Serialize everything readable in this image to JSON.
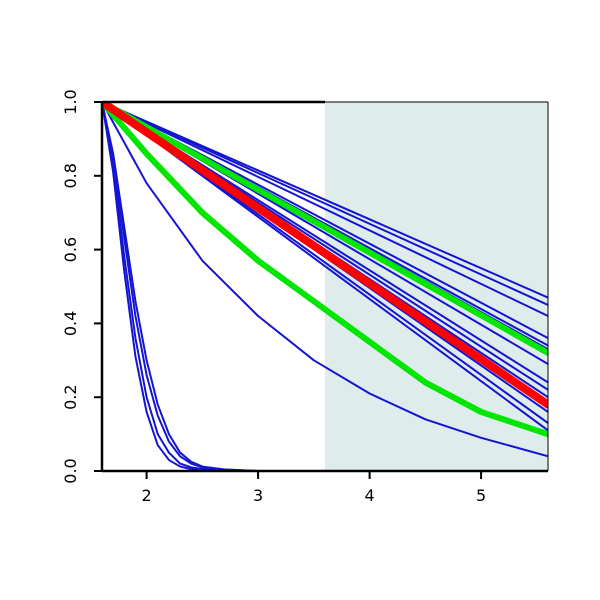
{
  "chart_data": {
    "type": "line",
    "title": "",
    "xlabel": "",
    "ylabel": "",
    "xlim": [
      1.6,
      5.6
    ],
    "ylim": [
      0,
      1
    ],
    "x_ticks": [
      2,
      3,
      4,
      5
    ],
    "y_ticks": [
      0.0,
      0.2,
      0.4,
      0.6,
      0.8,
      1.0
    ],
    "x_tick_labels": [
      "2",
      "3",
      "4",
      "5"
    ],
    "y_tick_labels": [
      "0.0",
      "0.2",
      "0.4",
      "0.6",
      "0.8",
      "1.0"
    ],
    "grid": false,
    "shaded_region": {
      "x_start": 3.6,
      "x_end": 5.6,
      "color": "#deecec"
    },
    "series_colors": {
      "thin": "#1414d2",
      "highlight": "#00e600",
      "focus": "#ff0000"
    },
    "series": [
      {
        "color_role": "thin",
        "width": 2,
        "x": [
          1.6,
          5.6
        ],
        "y": [
          1.0,
          0.47
        ]
      },
      {
        "color_role": "thin",
        "width": 2,
        "x": [
          1.6,
          5.6
        ],
        "y": [
          1.0,
          0.45
        ]
      },
      {
        "color_role": "thin",
        "width": 2,
        "x": [
          1.6,
          5.6
        ],
        "y": [
          1.0,
          0.42
        ]
      },
      {
        "color_role": "thin",
        "width": 2,
        "x": [
          1.6,
          5.6
        ],
        "y": [
          1.0,
          0.36
        ]
      },
      {
        "color_role": "thin",
        "width": 2,
        "x": [
          1.6,
          5.6
        ],
        "y": [
          1.0,
          0.34
        ]
      },
      {
        "color_role": "thin",
        "width": 2,
        "x": [
          1.6,
          5.6
        ],
        "y": [
          1.0,
          0.33
        ]
      },
      {
        "color_role": "thin",
        "width": 2,
        "x": [
          1.6,
          5.6
        ],
        "y": [
          1.0,
          0.29
        ]
      },
      {
        "color_role": "thin",
        "width": 2,
        "x": [
          1.6,
          5.6
        ],
        "y": [
          1.0,
          0.24
        ]
      },
      {
        "color_role": "thin",
        "width": 2,
        "x": [
          1.6,
          5.6
        ],
        "y": [
          1.0,
          0.22
        ]
      },
      {
        "color_role": "thin",
        "width": 2,
        "x": [
          1.6,
          5.6
        ],
        "y": [
          1.0,
          0.2
        ]
      },
      {
        "color_role": "thin",
        "width": 2,
        "x": [
          1.6,
          5.6
        ],
        "y": [
          1.0,
          0.16
        ]
      },
      {
        "color_role": "thin",
        "width": 2,
        "x": [
          1.6,
          5.6
        ],
        "y": [
          1.0,
          0.13
        ]
      },
      {
        "color_role": "thin",
        "width": 2,
        "x": [
          1.6,
          5.6
        ],
        "y": [
          1.0,
          0.11
        ]
      },
      {
        "color_role": "thin",
        "width": 2,
        "x": [
          1.6,
          2.0,
          2.5,
          3.0,
          3.5,
          4.0,
          4.5,
          5.0,
          5.6
        ],
        "y": [
          1.0,
          0.78,
          0.57,
          0.42,
          0.3,
          0.21,
          0.14,
          0.09,
          0.04
        ]
      },
      {
        "color_role": "thin",
        "width": 2,
        "x": [
          1.6,
          1.7,
          1.8,
          1.9,
          2.0,
          2.1,
          2.2,
          2.3,
          2.4,
          2.5,
          2.7,
          3.0,
          3.5,
          5.6
        ],
        "y": [
          1.0,
          0.85,
          0.63,
          0.42,
          0.26,
          0.15,
          0.08,
          0.04,
          0.02,
          0.01,
          0.004,
          0.0,
          0.0,
          0.0
        ]
      },
      {
        "color_role": "thin",
        "width": 2,
        "x": [
          1.6,
          1.7,
          1.8,
          1.9,
          2.0,
          2.1,
          2.2,
          2.3,
          2.4,
          2.5,
          2.7,
          3.0,
          3.5,
          5.6
        ],
        "y": [
          1.0,
          0.86,
          0.66,
          0.46,
          0.3,
          0.18,
          0.1,
          0.05,
          0.025,
          0.012,
          0.004,
          0.0,
          0.0,
          0.0
        ]
      },
      {
        "color_role": "thin",
        "width": 2,
        "x": [
          1.6,
          1.7,
          1.8,
          1.9,
          2.0,
          2.1,
          2.2,
          2.3,
          2.4,
          2.5,
          2.7,
          3.0,
          3.5,
          5.6
        ],
        "y": [
          1.0,
          0.83,
          0.58,
          0.36,
          0.2,
          0.1,
          0.05,
          0.02,
          0.01,
          0.005,
          0.001,
          0.0,
          0.0,
          0.0
        ]
      },
      {
        "color_role": "thin",
        "width": 2,
        "x": [
          1.6,
          1.7,
          1.8,
          1.9,
          2.0,
          2.1,
          2.2,
          2.3,
          2.4,
          2.5,
          2.7,
          3.0,
          3.5,
          5.6
        ],
        "y": [
          1.0,
          0.81,
          0.54,
          0.31,
          0.16,
          0.07,
          0.03,
          0.012,
          0.005,
          0.002,
          0.0,
          0.0,
          0.0,
          0.0
        ]
      },
      {
        "color_role": "highlight",
        "width": 6,
        "x": [
          1.6,
          5.6
        ],
        "y": [
          1.0,
          0.32
        ]
      },
      {
        "color_role": "highlight",
        "width": 6,
        "x": [
          1.6,
          2.0,
          2.5,
          3.0,
          3.5,
          4.0,
          4.5,
          5.0,
          5.6
        ],
        "y": [
          1.0,
          0.86,
          0.7,
          0.57,
          0.46,
          0.35,
          0.24,
          0.16,
          0.1
        ]
      },
      {
        "color_role": "focus",
        "width": 8,
        "x": [
          1.6,
          5.6
        ],
        "y": [
          1.0,
          0.18
        ]
      }
    ]
  }
}
